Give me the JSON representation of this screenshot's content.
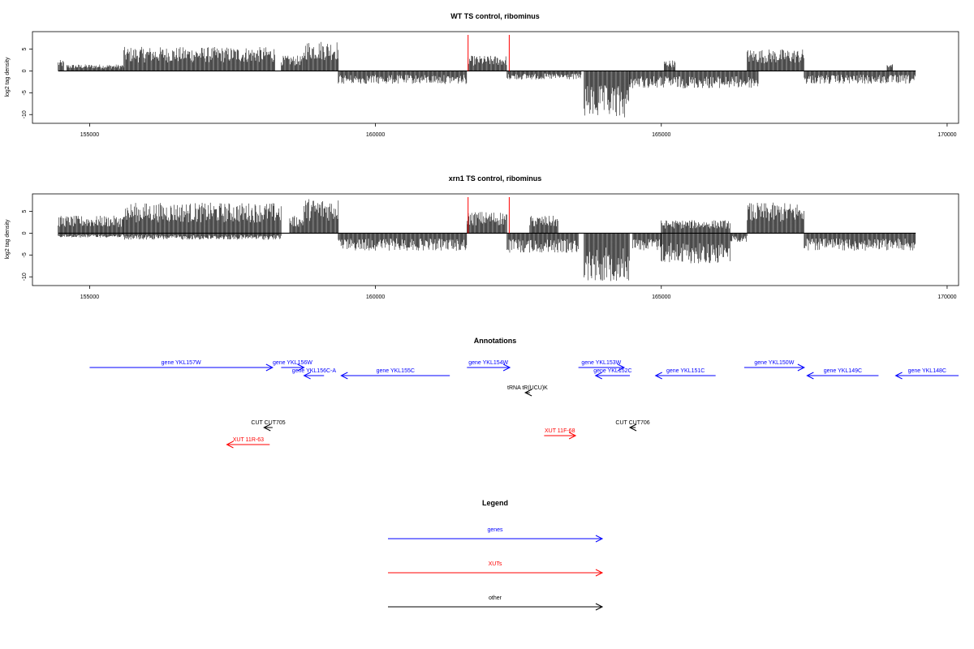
{
  "colors": {
    "gene": "#0000ff",
    "xut": "#ff0000",
    "other": "#000000",
    "marker": "#ff0000"
  },
  "x_axis": {
    "range": [
      154000,
      170200
    ],
    "ticks": [
      155000,
      160000,
      165000,
      170000
    ]
  },
  "chart_data": [
    {
      "type": "bar",
      "title": "WT TS control, ribominus",
      "ylabel": "log2 tag density",
      "ylim": [
        -12,
        9
      ],
      "yticks": [
        -10,
        -5,
        0,
        5
      ],
      "marker_lines_x": [
        161620,
        162340
      ],
      "regions": [
        {
          "start": 154450,
          "end": 154550,
          "max": 2.5
        },
        {
          "start": 154600,
          "end": 155600,
          "max": 1.5
        },
        {
          "start": 155600,
          "end": 158250,
          "max": 5.5
        },
        {
          "start": 158350,
          "end": 158750,
          "max": 3.5
        },
        {
          "start": 158750,
          "end": 159350,
          "max": 7
        },
        {
          "start": 159350,
          "end": 161600,
          "min": -3
        },
        {
          "start": 161620,
          "end": 162300,
          "max": 3.5
        },
        {
          "start": 162300,
          "end": 163600,
          "min": -2
        },
        {
          "start": 163650,
          "end": 164450,
          "min": -11
        },
        {
          "start": 164450,
          "end": 166700,
          "min": -4
        },
        {
          "start": 165050,
          "end": 165250,
          "max": 2.5
        },
        {
          "start": 166500,
          "end": 167500,
          "max": 5
        },
        {
          "start": 167500,
          "end": 169450,
          "min": -3
        },
        {
          "start": 168950,
          "end": 169050,
          "max": 2
        }
      ]
    },
    {
      "type": "bar",
      "title": "xrn1 TS control, ribominus",
      "ylabel": "log2 tag density",
      "ylim": [
        -12,
        9
      ],
      "yticks": [
        -10,
        -5,
        0,
        5
      ],
      "marker_lines_x": [
        161620,
        162340
      ],
      "regions": [
        {
          "start": 154450,
          "end": 155600,
          "max": 4
        },
        {
          "start": 154450,
          "end": 155600,
          "min": -1
        },
        {
          "start": 155600,
          "end": 158350,
          "max": 7
        },
        {
          "start": 155600,
          "end": 158350,
          "min": -1.5
        },
        {
          "start": 158500,
          "end": 158750,
          "max": 4
        },
        {
          "start": 158750,
          "end": 159350,
          "max": 8
        },
        {
          "start": 159350,
          "end": 161600,
          "min": -4
        },
        {
          "start": 161600,
          "end": 162300,
          "max": 5
        },
        {
          "start": 162300,
          "end": 163550,
          "min": -4.5
        },
        {
          "start": 162700,
          "end": 163200,
          "max": 4
        },
        {
          "start": 163650,
          "end": 164450,
          "min": -11
        },
        {
          "start": 164500,
          "end": 165000,
          "min": -4
        },
        {
          "start": 165000,
          "end": 166200,
          "min": -7
        },
        {
          "start": 165000,
          "end": 166200,
          "max": 3
        },
        {
          "start": 166200,
          "end": 166500,
          "min": -2
        },
        {
          "start": 166500,
          "end": 167500,
          "max": 7
        },
        {
          "start": 167500,
          "end": 169450,
          "min": -4
        }
      ]
    }
  ],
  "annotations": {
    "title": "Annotations",
    "features": [
      {
        "label": "gene YKL157W",
        "kind": "gene",
        "start": 155000,
        "end": 158200,
        "strand": "+",
        "row": 0
      },
      {
        "label": "gene YKL156W",
        "kind": "gene",
        "start": 158350,
        "end": 158750,
        "strand": "+",
        "row": 0
      },
      {
        "label": "gene YKL156C-A",
        "kind": "gene",
        "start": 158750,
        "end": 159100,
        "strand": "-",
        "row": 1
      },
      {
        "label": "gene YKL155C",
        "kind": "gene",
        "start": 159400,
        "end": 161300,
        "strand": "-",
        "row": 1
      },
      {
        "label": "gene YKL154W",
        "kind": "gene",
        "start": 161600,
        "end": 162350,
        "strand": "+",
        "row": 0
      },
      {
        "label": "gene YKL153W",
        "kind": "gene",
        "start": 163550,
        "end": 164350,
        "strand": "+",
        "row": 0
      },
      {
        "label": "gene YKL152C",
        "kind": "gene",
        "start": 163850,
        "end": 164450,
        "strand": "-",
        "row": 1
      },
      {
        "label": "gene YKL151C",
        "kind": "gene",
        "start": 164900,
        "end": 165950,
        "strand": "-",
        "row": 1
      },
      {
        "label": "gene YKL150W",
        "kind": "gene",
        "start": 166450,
        "end": 167500,
        "strand": "+",
        "row": 0
      },
      {
        "label": "gene YKL149C",
        "kind": "gene",
        "start": 167550,
        "end": 168800,
        "strand": "-",
        "row": 1
      },
      {
        "label": "gene YKL148C",
        "kind": "gene",
        "start": 169100,
        "end": 170200,
        "strand": "-",
        "row": 1
      },
      {
        "label": "tRNA tR(UCU)K",
        "kind": "other",
        "start": 162620,
        "end": 162700,
        "strand": "-",
        "row": 2
      },
      {
        "label": "CUT CUT705",
        "kind": "other",
        "start": 158050,
        "end": 158200,
        "strand": "-",
        "row": 3
      },
      {
        "label": "CUT CUT706",
        "kind": "other",
        "start": 164450,
        "end": 164550,
        "strand": "-",
        "row": 3
      },
      {
        "label": "XUT 11F-68",
        "kind": "xut",
        "start": 162950,
        "end": 163500,
        "strand": "+",
        "row": 4
      },
      {
        "label": "XUT 11R-63",
        "kind": "xut",
        "start": 157400,
        "end": 158150,
        "strand": "-",
        "row": 5
      }
    ]
  },
  "legend": {
    "title": "Legend",
    "items": [
      {
        "label": "genes",
        "kind": "gene"
      },
      {
        "label": "XUTs",
        "kind": "xut"
      },
      {
        "label": "other",
        "kind": "other"
      }
    ]
  }
}
